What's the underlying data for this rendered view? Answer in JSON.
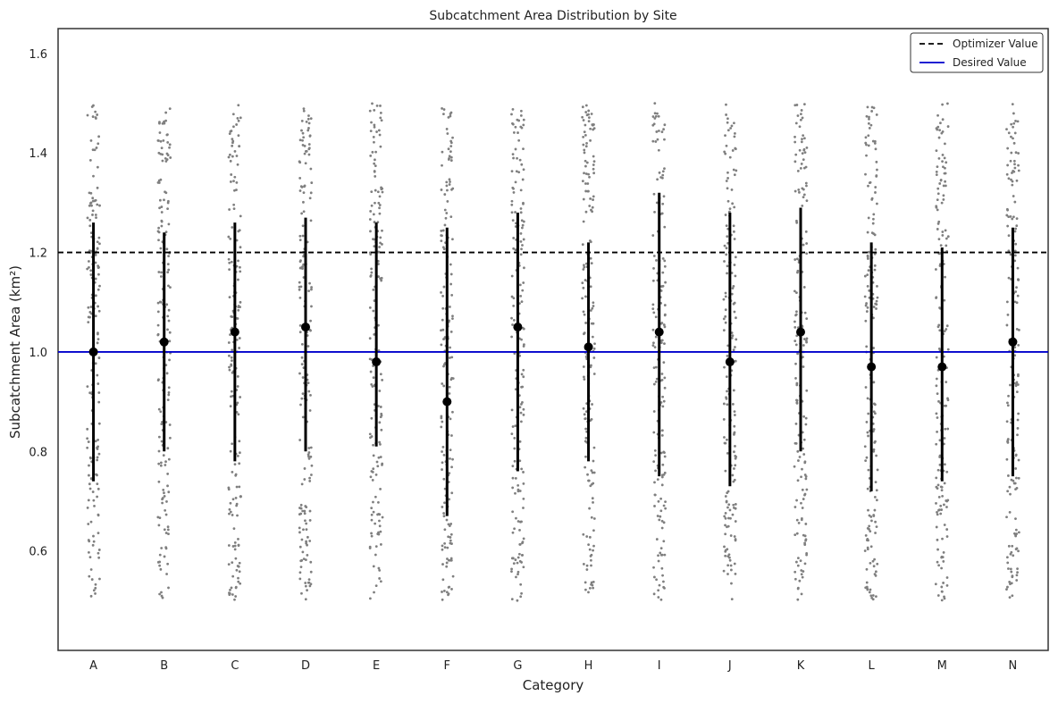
{
  "chart_data": {
    "type": "strip",
    "title": "Subcatchment Area Distribution by Site",
    "xlabel": "Category",
    "ylabel": "Subcatchment Area (km²)",
    "categories": [
      "A",
      "B",
      "C",
      "D",
      "E",
      "F",
      "G",
      "H",
      "I",
      "J",
      "K",
      "L",
      "M",
      "N"
    ],
    "ylim": [
      0.4,
      1.65
    ],
    "yticks": [
      "0.6",
      "0.8",
      "1.0",
      "1.2",
      "1.4",
      "1.6"
    ],
    "observation_range": [
      0.5,
      1.5
    ],
    "means": [
      1.0,
      1.02,
      1.04,
      1.05,
      0.98,
      0.9,
      1.05,
      1.01,
      1.04,
      0.98,
      1.04,
      0.97,
      0.97,
      1.02
    ],
    "error_low": [
      0.74,
      0.8,
      0.78,
      0.8,
      0.81,
      0.67,
      0.76,
      0.78,
      0.75,
      0.73,
      0.8,
      0.72,
      0.74,
      0.75
    ],
    "error_high": [
      1.26,
      1.24,
      1.26,
      1.27,
      1.26,
      1.25,
      1.28,
      1.22,
      1.32,
      1.28,
      1.29,
      1.22,
      1.21,
      1.25
    ],
    "reference_lines": [
      {
        "label": "Optimizer Value",
        "y": 1.2,
        "style": "dashed",
        "color": "#000000"
      },
      {
        "label": "Desired Value",
        "y": 1.0,
        "style": "solid",
        "color": "#0000cc"
      }
    ],
    "colors": {
      "points": "#7f7f7f",
      "mean": "#000000",
      "errorbar": "#000000"
    },
    "legend_position": "top-right",
    "grid": false
  }
}
